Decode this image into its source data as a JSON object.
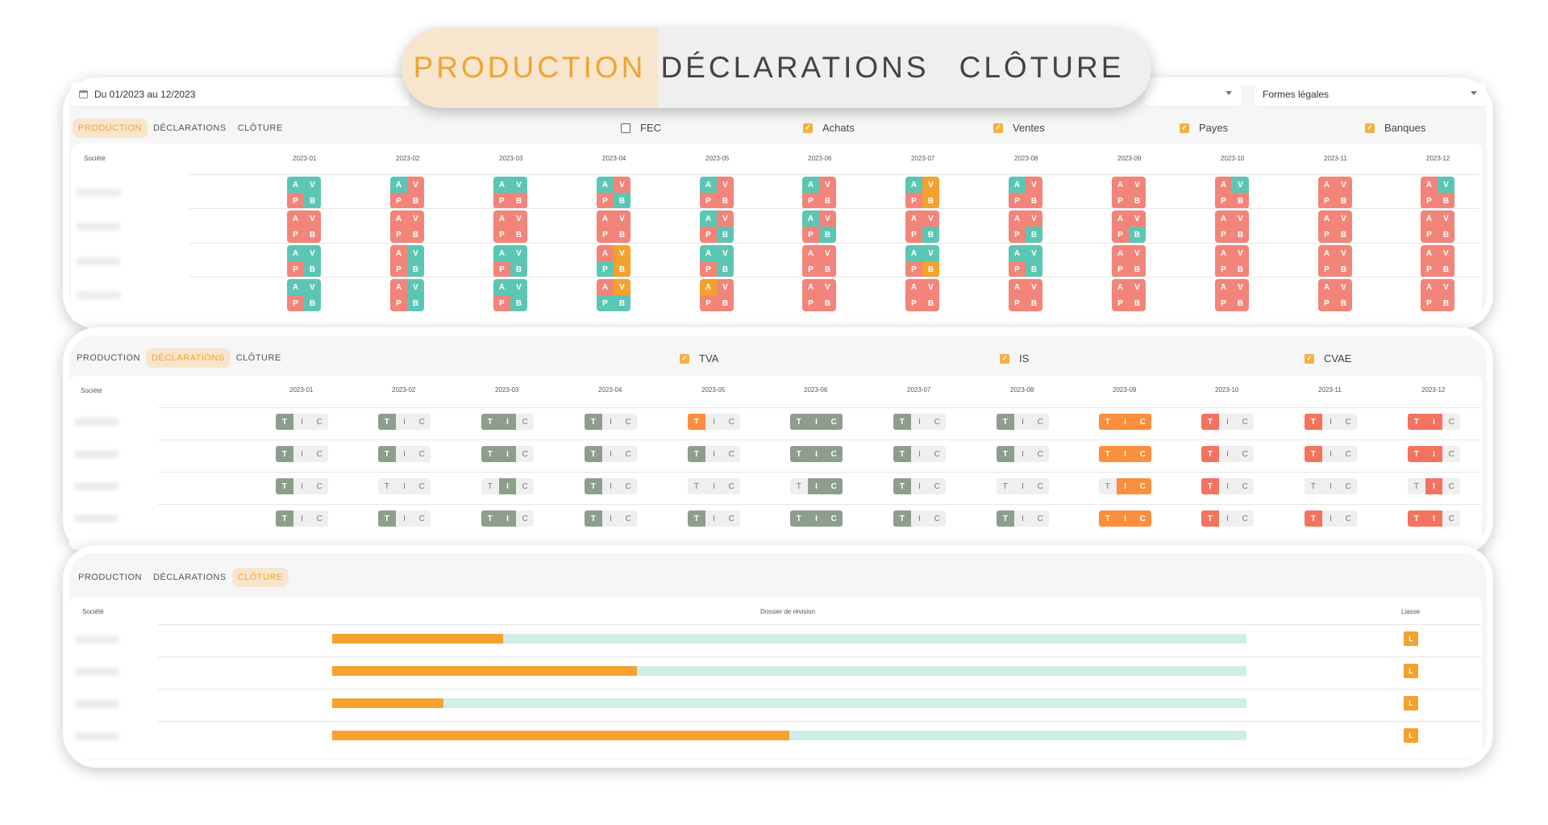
{
  "colors": {
    "red": "#f2847a",
    "teal": "#5cc6b4",
    "orange": "#f4a12f",
    "gray": "#8e9e8c",
    "tic_orange": "#fd8e3b",
    "tic_red": "#f4725e",
    "accent": "#f0a42e"
  },
  "main_tabs": [
    "PRODUCTION",
    "DÉCLARATIONS",
    "CLÔTURE"
  ],
  "main_tabs_active": 0,
  "filters": {
    "date_range": "Du 01/2023 au 12/2023",
    "forms": "Formes légales"
  },
  "subtabs": [
    "PRODUCTION",
    "DÉCLARATIONS",
    "CLÔTURE"
  ],
  "months": [
    "2023-01",
    "2023-02",
    "2023-03",
    "2023-04",
    "2023-05",
    "2023-06",
    "2023-07",
    "2023-08",
    "2023-09",
    "2023-10",
    "2023-11",
    "2023-12"
  ],
  "company_header": "Société",
  "production": {
    "checkboxes": [
      {
        "label": "FEC",
        "checked": false
      },
      {
        "label": "Achats",
        "checked": true
      },
      {
        "label": "Ventes",
        "checked": true
      },
      {
        "label": "Payes",
        "checked": true
      },
      {
        "label": "Banques",
        "checked": true
      }
    ],
    "letters": [
      "A",
      "V",
      "P",
      "B"
    ],
    "rows": [
      [
        "TTRT",
        "TRRR",
        "TTRR",
        "TRRT",
        "TRRR",
        "TRRR",
        "TORO",
        "TRRR",
        "RRRR",
        "RTRR",
        "RRRR",
        "RTRR"
      ],
      [
        "RRRR",
        "RRRR",
        "RRRR",
        "RRRR",
        "TRRT",
        "TRRT",
        "RRRT",
        "RRRT",
        "RRRT",
        "RRRR",
        "RRRR",
        "RRRR"
      ],
      [
        "TTRT",
        "RTRT",
        "TTRT",
        "ROTO",
        "TTRT",
        "RRRR",
        "TTRO",
        "TTRT",
        "RRRR",
        "RRRR",
        "RRRR",
        "RRRR"
      ],
      [
        "TTRT",
        "RTRT",
        "TTRT",
        "ROTT",
        "ORRR",
        "RRRR",
        "RRRR",
        "RRRR",
        "RRRR",
        "RRRR",
        "RRRR",
        "RRRR"
      ]
    ]
  },
  "declarations": {
    "checkboxes": [
      {
        "label": "TVA",
        "checked": true
      },
      {
        "label": "IS",
        "checked": true
      },
      {
        "label": "CVAE",
        "checked": true
      }
    ],
    "letters": [
      "T",
      "I",
      "C"
    ],
    "rows": [
      [
        "G00",
        "G00",
        "GG0",
        "G00",
        "O00",
        "GGG",
        "G00",
        "G00",
        "OOO",
        "R00",
        "R00",
        "RR0"
      ],
      [
        "G00",
        "G00",
        "GG0",
        "G00",
        "G00",
        "GGG",
        "G00",
        "G00",
        "OOO",
        "R00",
        "R00",
        "RR0"
      ],
      [
        "G00",
        "000",
        "0G0",
        "G00",
        "000",
        "0GG",
        "G00",
        "000",
        "0OO",
        "R00",
        "000",
        "0R0"
      ],
      [
        "G00",
        "G00",
        "GG0",
        "G00",
        "G00",
        "GGG",
        "G00",
        "G00",
        "OOO",
        "R00",
        "R00",
        "RR0"
      ]
    ]
  },
  "cloture": {
    "col_dossier": "Dossier de révision",
    "col_liasse": "Liasse",
    "liasse_label": "L",
    "progress": [
      0.187,
      0.333,
      0.122,
      0.5
    ]
  }
}
